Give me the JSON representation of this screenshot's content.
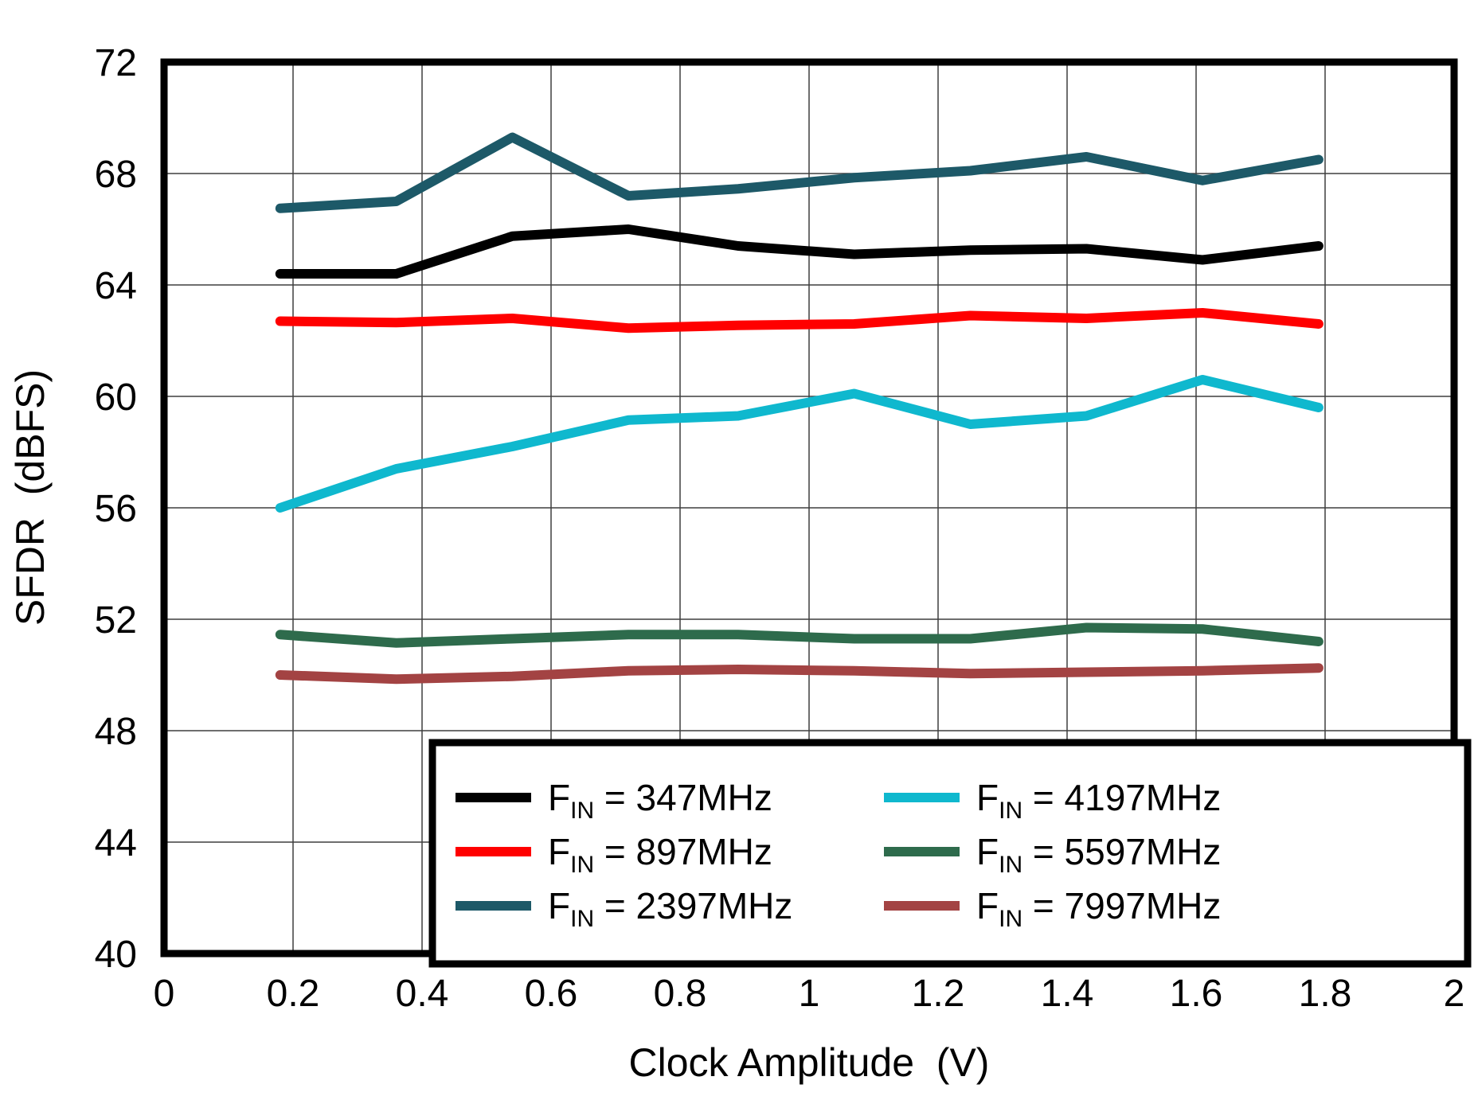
{
  "chart_data": {
    "type": "line",
    "title": "",
    "xlabel": "Clock Amplitude  (V)",
    "ylabel": "SFDR  (dBFS)",
    "xlim": [
      0,
      2
    ],
    "ylim": [
      40,
      72
    ],
    "xticks": [
      0,
      0.2,
      0.4,
      0.6,
      0.8,
      1,
      1.2,
      1.4,
      1.6,
      1.8,
      2
    ],
    "xtick_labels": [
      "0",
      "0.2",
      "0.4",
      "0.6",
      "0.8",
      "1",
      "1.2",
      "1.4",
      "1.6",
      "1.8",
      "2"
    ],
    "yticks": [
      40,
      44,
      48,
      52,
      56,
      60,
      64,
      68,
      72
    ],
    "ytick_labels": [
      "40",
      "44",
      "48",
      "52",
      "56",
      "60",
      "64",
      "68",
      "72"
    ],
    "grid": true,
    "grid_color": "#3f3f3f",
    "frame_color": "#000000",
    "legend_position": "bottom-right",
    "legend_columns": 2,
    "x": [
      0.18,
      0.36,
      0.54,
      0.72,
      0.89,
      1.07,
      1.25,
      1.43,
      1.61,
      1.79
    ],
    "series": [
      {
        "name": "FIN = 347MHz",
        "label_base": "F",
        "label_sub": "IN",
        "label_rest": " = 347MHz",
        "color": "#000000",
        "values": [
          64.4,
          64.4,
          65.75,
          66.0,
          65.4,
          65.1,
          65.25,
          65.3,
          64.9,
          65.4
        ]
      },
      {
        "name": "FIN = 897MHz",
        "label_base": "F",
        "label_sub": "IN",
        "label_rest": " = 897MHz",
        "color": "#ff0000",
        "values": [
          62.7,
          62.65,
          62.8,
          62.45,
          62.55,
          62.6,
          62.9,
          62.8,
          63.0,
          62.6
        ]
      },
      {
        "name": "FIN = 2397MHz",
        "label_base": "F",
        "label_sub": "IN",
        "label_rest": " = 2397MHz",
        "color": "#1d5968",
        "values": [
          66.75,
          67.0,
          69.3,
          67.2,
          67.45,
          67.85,
          68.1,
          68.6,
          67.75,
          68.5
        ]
      },
      {
        "name": "FIN = 4197MHz",
        "label_base": "F",
        "label_sub": "IN",
        "label_rest": " = 4197MHz",
        "color": "#0fb8ce",
        "values": [
          56.0,
          57.4,
          58.2,
          59.15,
          59.3,
          60.1,
          59.0,
          59.3,
          60.6,
          59.6
        ]
      },
      {
        "name": "FIN = 5597MHz",
        "label_base": "F",
        "label_sub": "IN",
        "label_rest": " = 5597MHz",
        "color": "#2e6b4c",
        "values": [
          51.45,
          51.15,
          51.3,
          51.45,
          51.45,
          51.3,
          51.3,
          51.7,
          51.65,
          51.2
        ]
      },
      {
        "name": "FIN = 7997MHz",
        "label_base": "F",
        "label_sub": "IN",
        "label_rest": " = 7997MHz",
        "color": "#a34343",
        "values": [
          50.0,
          49.85,
          49.95,
          50.15,
          50.2,
          50.15,
          50.05,
          50.1,
          50.15,
          50.25
        ]
      }
    ]
  }
}
